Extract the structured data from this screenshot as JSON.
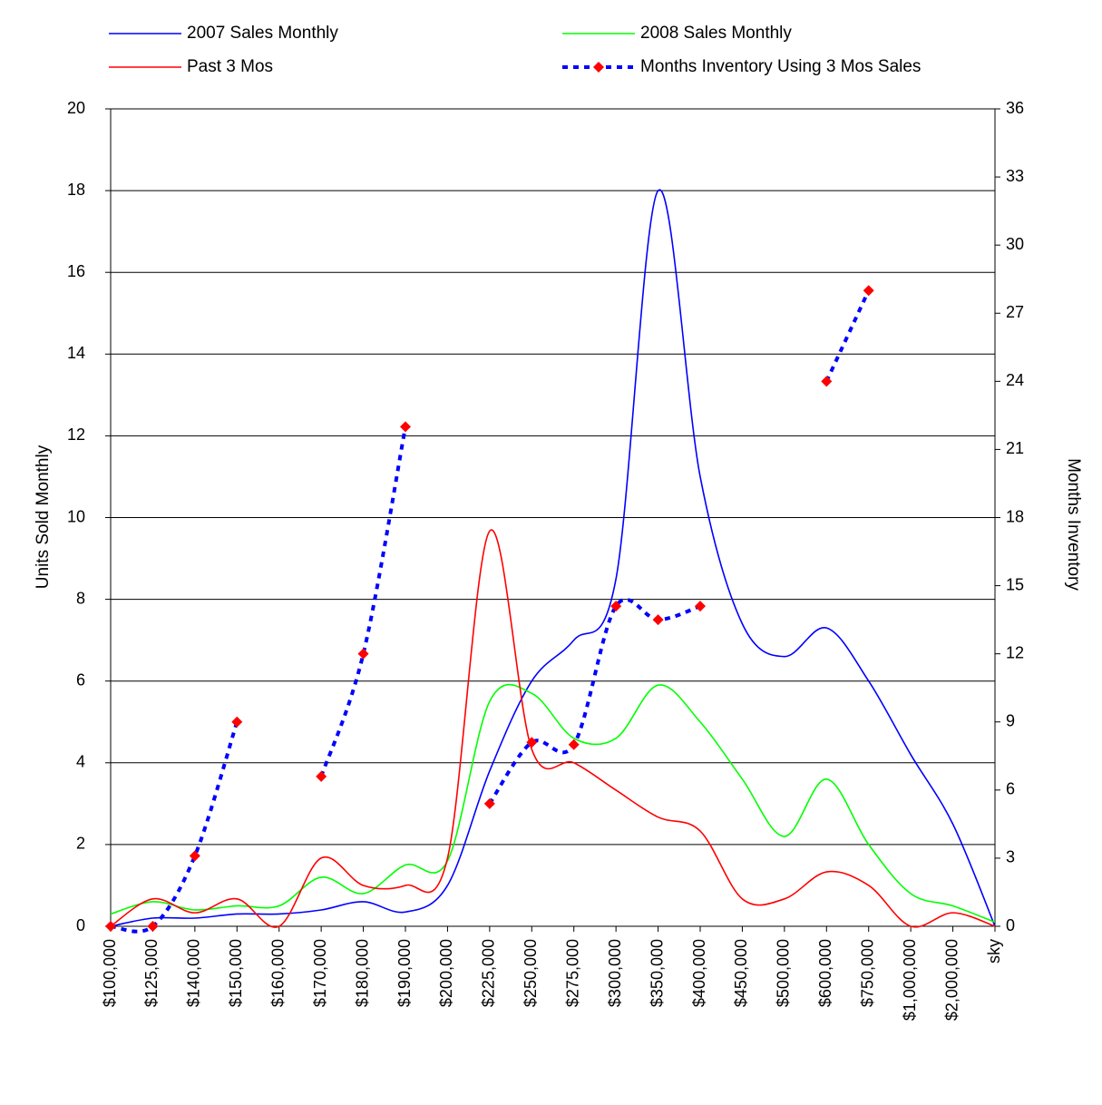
{
  "chart_data": {
    "type": "line",
    "y_label": "Units Sold Monthly",
    "y2_label": "Months Inventory",
    "categories": [
      "$100,000",
      "$125,000",
      "$140,000",
      "$150,000",
      "$160,000",
      "$170,000",
      "$180,000",
      "$190,000",
      "$200,000",
      "$225,000",
      "$250,000",
      "$275,000",
      "$300,000",
      "$350,000",
      "$400,000",
      "$450,000",
      "$500,000",
      "$600,000",
      "$750,000",
      "$1,000,000",
      "$2,000,000",
      "sky"
    ],
    "series": [
      {
        "name": "2007 Sales Monthly",
        "color": "#0000ff",
        "values": [
          0,
          0.2,
          0.2,
          0.3,
          0.3,
          0.4,
          0.6,
          0.35,
          1,
          3.8,
          6,
          7,
          8.5,
          18,
          11,
          7.4,
          6.6,
          7.3,
          6,
          4.2,
          2.5,
          0
        ]
      },
      {
        "name": "2008 Sales Monthly",
        "color": "#00ff00",
        "values": [
          0.3,
          0.6,
          0.4,
          0.5,
          0.5,
          1.2,
          0.8,
          1.5,
          1.6,
          5.5,
          5.7,
          4.6,
          4.6,
          5.9,
          5,
          3.6,
          2.2,
          3.6,
          2,
          0.8,
          0.5,
          0.1
        ]
      },
      {
        "name": "Past 3 Mos",
        "color": "#ff0000",
        "values": [
          0,
          0.67,
          0.33,
          0.67,
          0,
          1.67,
          1,
          1,
          1.67,
          9.67,
          4.33,
          4,
          3.33,
          2.67,
          2.33,
          0.67,
          0.67,
          1.33,
          1,
          0,
          0.33,
          0
        ]
      },
      {
        "name": "Months Inventory Using 3 Mos Sales",
        "color": "#0000ff",
        "marker_color": "#ff0000",
        "dashed": true,
        "axis": "y2",
        "values": [
          0,
          0,
          3.1,
          9,
          null,
          6.6,
          12,
          22,
          null,
          5.4,
          8.1,
          8,
          14.1,
          13.5,
          14.1,
          null,
          null,
          24,
          28,
          null,
          null,
          null
        ]
      }
    ],
    "ylim": [
      0,
      20
    ],
    "yticks": [
      0,
      2,
      4,
      6,
      8,
      10,
      12,
      14,
      16,
      18,
      20
    ],
    "y2lim": [
      0,
      36
    ],
    "y2ticks": [
      0,
      3,
      6,
      9,
      12,
      15,
      18,
      21,
      24,
      27,
      30,
      33,
      36
    ],
    "grid": true
  }
}
